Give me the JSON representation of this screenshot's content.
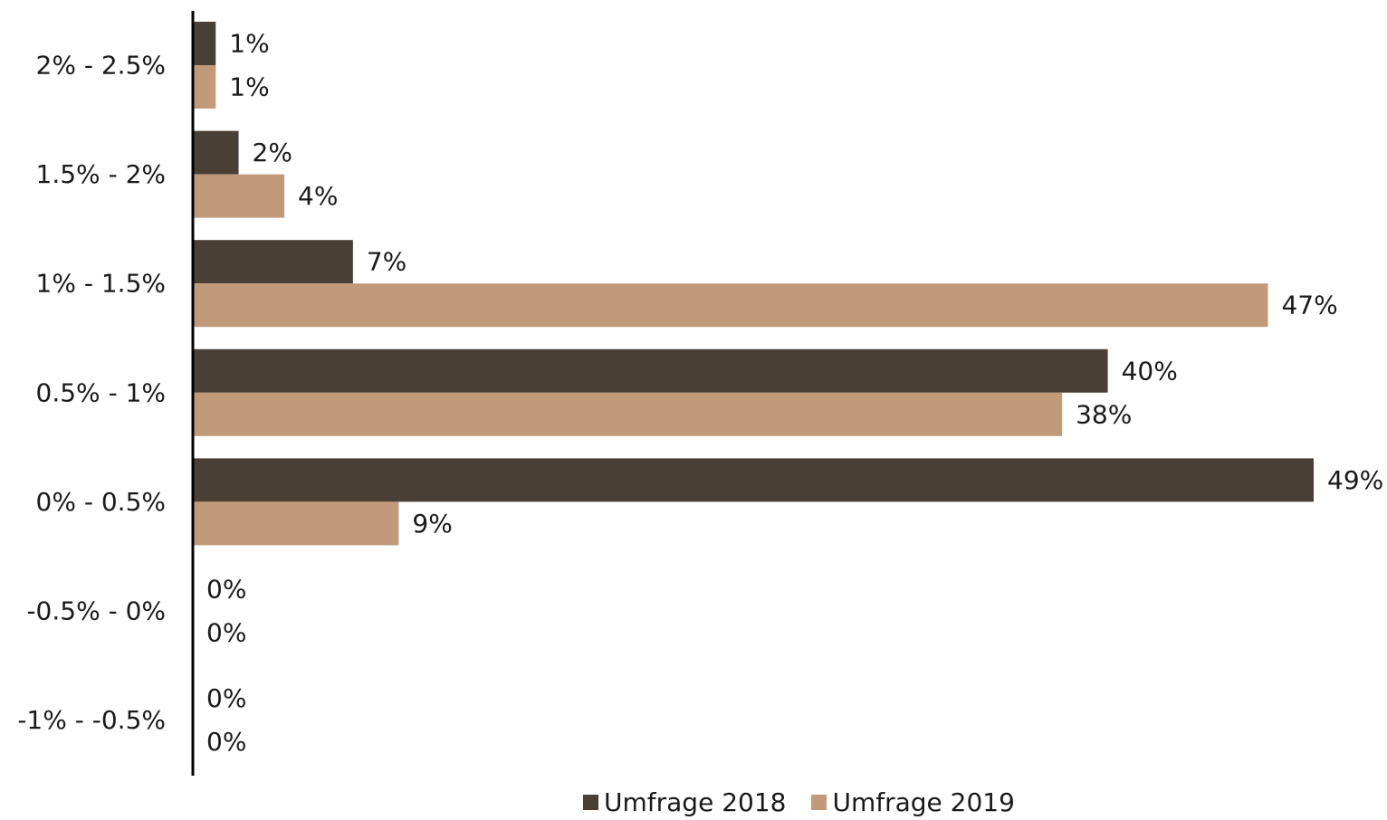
{
  "chart_data": {
    "type": "bar",
    "orientation": "horizontal",
    "categories": [
      "2% - 2.5%",
      "1.5% - 2%",
      "1% - 1.5%",
      "0.5% - 1%",
      "0% - 0.5%",
      "-0.5% - 0%",
      "-1% - -0.5%"
    ],
    "series": [
      {
        "name": "Umfrage 2018",
        "color": "#4a3f35",
        "values": [
          1,
          2,
          7,
          40,
          49,
          0,
          0
        ],
        "labels": [
          "1%",
          "2%",
          "7%",
          "40%",
          "49%",
          "0%",
          "0%"
        ]
      },
      {
        "name": "Umfrage 2019",
        "color": "#c09a79",
        "values": [
          1,
          4,
          47,
          38,
          9,
          0,
          0
        ],
        "labels": [
          "1%",
          "4%",
          "47%",
          "38%",
          "9%",
          "0%",
          "0%"
        ]
      }
    ],
    "xlim": [
      0,
      49
    ],
    "grid": false,
    "legend_position": "bottom"
  }
}
